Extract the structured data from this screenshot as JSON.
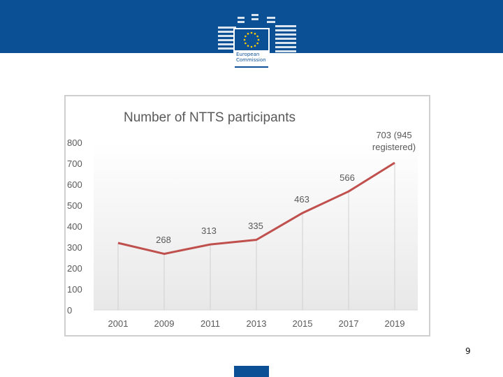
{
  "header": {
    "logo_text": [
      "European",
      "Commission"
    ]
  },
  "slide": {
    "number": "9"
  },
  "colors": {
    "header": "#0b4f94",
    "line": "#c0504d",
    "axis_text": "#595959"
  },
  "chart_data": {
    "type": "line",
    "title": "Number of NTTS participants",
    "categories": [
      "2001",
      "2009",
      "2011",
      "2013",
      "2015",
      "2017",
      "2019"
    ],
    "values": [
      320,
      268,
      313,
      335,
      463,
      566,
      703
    ],
    "data_labels": [
      "",
      "268",
      "313",
      "335",
      "463",
      "566",
      "703 (945 registered)"
    ],
    "ylim": [
      0,
      800
    ],
    "yticks": [
      0,
      100,
      200,
      300,
      400,
      500,
      600,
      700,
      800
    ],
    "grid": "vertical drop lines",
    "legend": "none"
  }
}
